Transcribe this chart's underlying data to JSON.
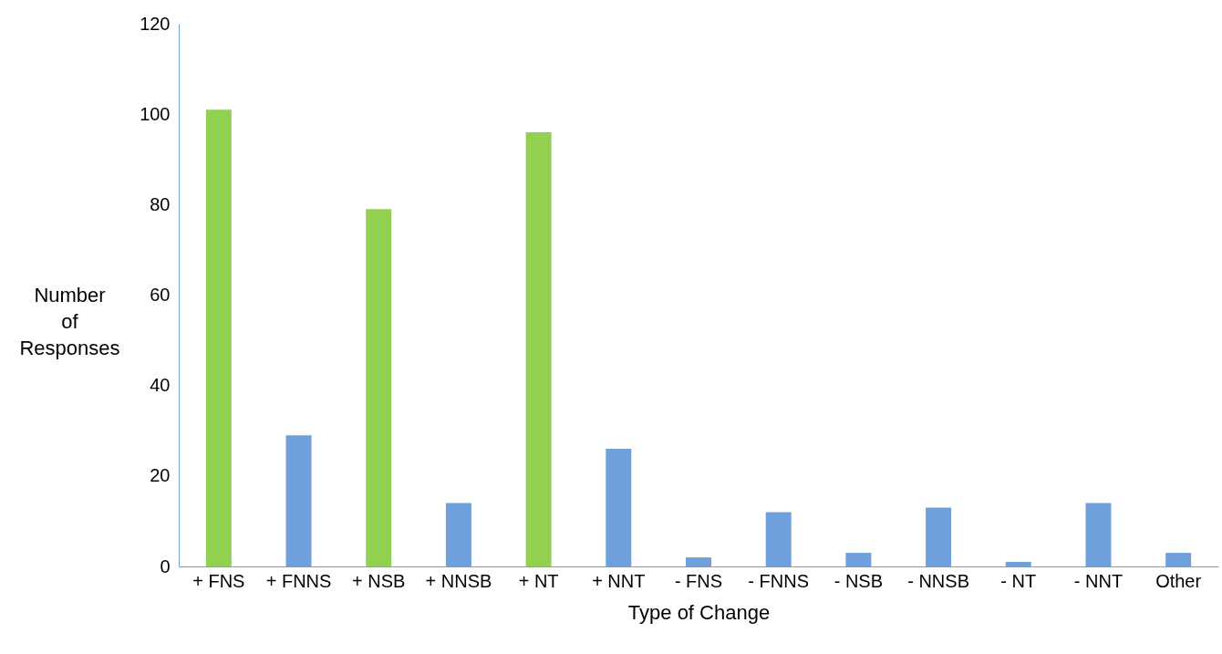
{
  "chart_data": {
    "type": "bar",
    "xlabel": "Type of Change",
    "ylabel": "Number of Responses",
    "categories": [
      "+ FNS",
      "+ FNNS",
      "+ NSB",
      "+ NNSB",
      "+ NT",
      "+ NNT",
      "- FNS",
      "- FNNS",
      "- NSB",
      "- NNSB",
      "- NT",
      "- NNT",
      "Other"
    ],
    "values": [
      101,
      29,
      79,
      14,
      96,
      26,
      2,
      12,
      3,
      13,
      1,
      14,
      3
    ],
    "colors": [
      "#92d050",
      "#6fa0dc",
      "#92d050",
      "#6fa0dc",
      "#92d050",
      "#6fa0dc",
      "#6fa0dc",
      "#6fa0dc",
      "#6fa0dc",
      "#6fa0dc",
      "#6fa0dc",
      "#6fa0dc",
      "#6fa0dc"
    ],
    "ylim": [
      0,
      120
    ],
    "yticks": [
      0,
      20,
      40,
      60,
      80,
      100,
      120
    ],
    "grid": false
  }
}
